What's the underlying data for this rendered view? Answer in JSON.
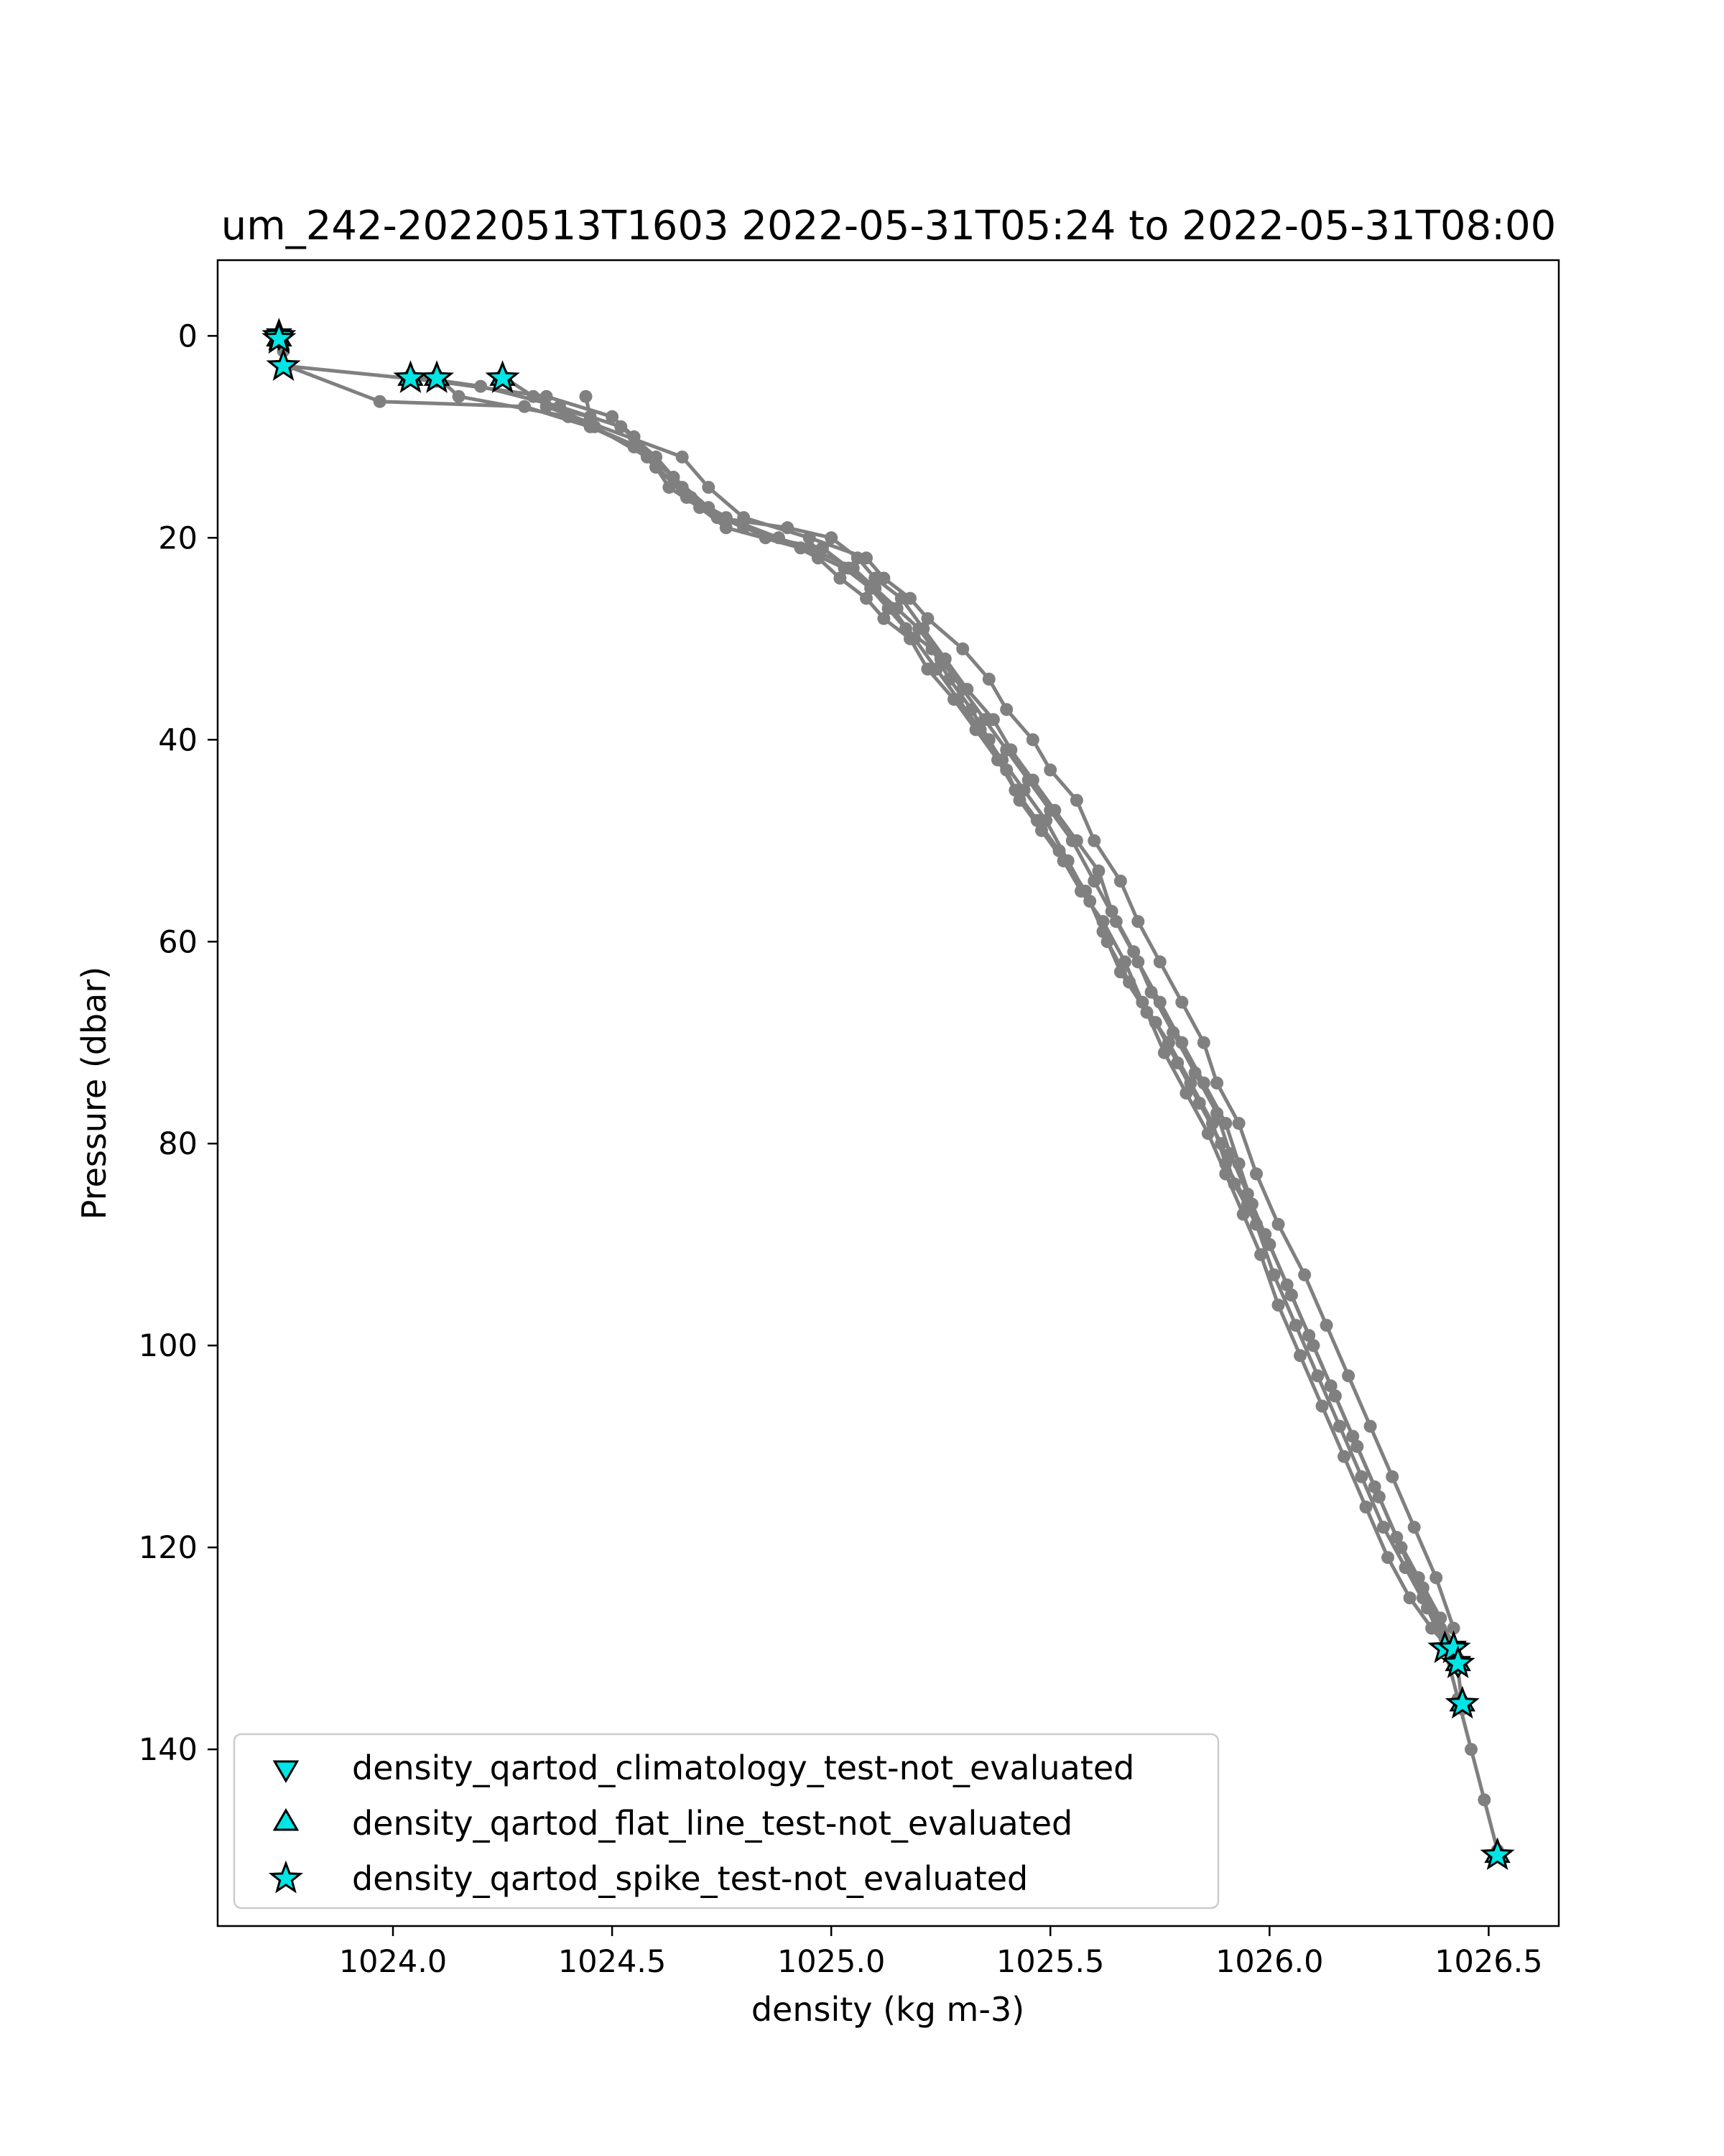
{
  "chart_data": {
    "type": "scatter",
    "title": "um_242-20220513T1603 2022-05-31T05:24 to 2022-05-31T08:00",
    "xlabel": "density (kg m-3)",
    "ylabel": "Pressure (dbar)",
    "xlim": [
      1023.6,
      1026.66
    ],
    "ylim": [
      157.5,
      -7.5
    ],
    "y_inverted": true,
    "grid": false,
    "x_ticks": [
      "1024.0",
      "1024.5",
      "1025.0",
      "1025.5",
      "1026.0",
      "1026.5"
    ],
    "y_ticks": [
      "0",
      "20",
      "40",
      "60",
      "80",
      "100",
      "120",
      "140"
    ],
    "profile_color": "#808080",
    "flag_color": "#00e5e5",
    "legend": {
      "position": "lower left",
      "entries": [
        {
          "label": "density_qartod_climatology_test-not_evaluated",
          "marker": "triangle-down"
        },
        {
          "label": "density_qartod_flat_line_test-not_evaluated",
          "marker": "triangle-up"
        },
        {
          "label": "density_qartod_spike_test-not_evaluated",
          "marker": "star"
        }
      ]
    },
    "series": [
      {
        "role": "profile",
        "x": [
          1023.74,
          1023.75,
          1023.76,
          1024.1,
          1024.35,
          1024.5,
          1024.55,
          1024.6,
          1024.63,
          1024.7,
          1024.8,
          1024.95,
          1025.05,
          1025.1,
          1025.15,
          1025.2,
          1025.25,
          1025.3,
          1025.35,
          1025.4,
          1025.45,
          1025.5,
          1025.55,
          1025.6,
          1025.65,
          1025.7,
          1025.75,
          1025.8,
          1025.85,
          1025.9,
          1025.93,
          1025.96,
          1026.0,
          1026.05,
          1026.1,
          1026.15,
          1026.2,
          1026.25,
          1026.3,
          1026.35,
          1026.4,
          1026.43,
          1026.46,
          1026.49,
          1026.52
        ],
        "y": [
          0,
          1.5,
          3,
          4.5,
          6,
          8,
          10,
          13,
          15,
          17,
          19,
          21,
          23,
          25,
          27,
          29,
          32,
          35,
          38,
          41,
          44,
          47,
          50,
          54,
          58,
          62,
          66,
          70,
          74,
          78,
          82,
          86,
          90,
          95,
          100,
          105,
          110,
          115,
          120,
          125,
          130,
          135,
          140,
          145,
          150
        ]
      },
      {
        "role": "profile",
        "x": [
          1023.74,
          1023.76,
          1023.97,
          1024.3,
          1024.45,
          1024.55,
          1024.6,
          1024.68,
          1024.76,
          1024.88,
          1024.97,
          1025.02,
          1025.08,
          1025.12,
          1025.18,
          1025.22,
          1025.28,
          1025.33,
          1025.38,
          1025.42,
          1025.47,
          1025.52,
          1025.58,
          1025.62,
          1025.66,
          1025.72,
          1025.76,
          1025.81,
          1025.86,
          1025.9,
          1025.94,
          1025.98,
          1026.02,
          1026.07,
          1026.12,
          1026.17,
          1026.22,
          1026.27,
          1026.32,
          1026.37,
          1026.41
        ],
        "y": [
          0,
          3,
          6.5,
          7,
          9,
          11,
          13,
          16,
          18,
          20,
          22,
          24,
          26,
          28,
          30,
          33,
          36,
          39,
          42,
          45,
          48,
          51,
          55,
          59,
          63,
          67,
          71,
          75,
          79,
          83,
          87,
          91,
          96,
          101,
          106,
          111,
          116,
          121,
          125,
          128,
          130
        ]
      },
      {
        "role": "profile",
        "x": [
          1024.04,
          1024.2,
          1024.38,
          1024.52,
          1024.6,
          1024.66,
          1024.74,
          1024.9,
          1025.0,
          1025.06,
          1025.1,
          1025.16,
          1025.21,
          1025.26,
          1025.31,
          1025.37,
          1025.41,
          1025.46,
          1025.51,
          1025.56,
          1025.61,
          1025.64,
          1025.69,
          1025.73,
          1025.78,
          1025.83,
          1025.88,
          1025.91,
          1025.95,
          1025.99,
          1026.04,
          1026.09,
          1026.14,
          1026.19,
          1026.24,
          1026.29,
          1026.34,
          1026.39,
          1026.42
        ],
        "y": [
          4,
          5,
          7,
          9,
          12,
          15,
          18,
          19,
          20,
          22,
          24,
          26,
          29,
          32,
          35,
          38,
          41,
          44,
          47,
          50,
          53,
          57,
          61,
          65,
          69,
          73,
          77,
          81,
          85,
          89,
          94,
          99,
          104,
          109,
          114,
          119,
          123,
          127,
          130
        ]
      },
      {
        "role": "profile",
        "x": [
          1024.1,
          1024.15,
          1024.4,
          1024.56,
          1024.64,
          1024.72,
          1024.85,
          1024.98,
          1025.04,
          1025.1,
          1025.14,
          1025.19,
          1025.24,
          1025.29,
          1025.34,
          1025.39,
          1025.44,
          1025.49,
          1025.54,
          1025.59,
          1025.63,
          1025.68,
          1025.74,
          1025.79,
          1025.84,
          1025.89,
          1025.92,
          1025.97,
          1026.01,
          1026.06,
          1026.11,
          1026.16,
          1026.21,
          1026.26,
          1026.31,
          1026.36,
          1026.4,
          1026.43
        ],
        "y": [
          4,
          6,
          8,
          11,
          14,
          17,
          20,
          21,
          23,
          25,
          27,
          30,
          33,
          36,
          39,
          42,
          45,
          48,
          52,
          56,
          60,
          64,
          68,
          72,
          76,
          80,
          84,
          88,
          93,
          98,
          103,
          108,
          113,
          118,
          122,
          126,
          129,
          131
        ]
      },
      {
        "role": "profile",
        "x": [
          1024.25,
          1024.32,
          1024.46,
          1024.58,
          1024.67,
          1024.76,
          1024.93,
          1025.03,
          1025.09,
          1025.13,
          1025.17,
          1025.23,
          1025.27,
          1025.32,
          1025.36,
          1025.4,
          1025.43,
          1025.48,
          1025.53,
          1025.57,
          1025.62,
          1025.67,
          1025.71,
          1025.77,
          1025.82,
          1025.87,
          1025.9,
          1025.95,
          1026.0,
          1026.05,
          1026.1,
          1026.15,
          1026.2,
          1026.25,
          1026.3,
          1026.35,
          1026.39,
          1026.43,
          1026.44
        ],
        "y": [
          4,
          6,
          9,
          12,
          16,
          19,
          21,
          23,
          25,
          27,
          29,
          31,
          34,
          37,
          40,
          43,
          46,
          49,
          52,
          55,
          58,
          62,
          66,
          70,
          74,
          78,
          82,
          86,
          90,
          95,
          100,
          105,
          110,
          115,
          120,
          124,
          128,
          132,
          136
        ]
      },
      {
        "role": "profile",
        "x": [
          1024.44,
          1024.45,
          1024.35,
          1024.66,
          1024.72,
          1024.8,
          1024.95,
          1025.08,
          1025.12,
          1025.18,
          1025.22,
          1025.3,
          1025.36,
          1025.4,
          1025.46,
          1025.5,
          1025.56,
          1025.6,
          1025.66,
          1025.7,
          1025.75,
          1025.8,
          1025.85,
          1025.88,
          1025.93,
          1025.97,
          1026.02,
          1026.08,
          1026.13,
          1026.18,
          1026.23,
          1026.28,
          1026.33,
          1026.38,
          1026.42
        ],
        "y": [
          6,
          8,
          7,
          12,
          15,
          18,
          20,
          22,
          24,
          26,
          28,
          31,
          34,
          37,
          40,
          43,
          46,
          50,
          54,
          58,
          62,
          66,
          70,
          74,
          78,
          83,
          88,
          93,
          98,
          103,
          108,
          113,
          118,
          123,
          128
        ]
      }
    ],
    "flags": [
      {
        "test": "density_qartod_spike_test-not_evaluated",
        "marker": "star",
        "x": [
          1023.74,
          1023.74,
          1023.75,
          1024.04,
          1024.1,
          1024.25,
          1026.4,
          1026.42,
          1026.43,
          1026.44,
          1026.52
        ],
        "y": [
          0,
          0.3,
          3,
          4.2,
          4.2,
          4.2,
          130,
          130,
          131.5,
          135.5,
          150.5
        ]
      },
      {
        "test": "density_qartod_flat_line_test-not_evaluated",
        "marker": "triangle-up",
        "x": [
          1023.74,
          1024.04,
          1024.1,
          1024.25,
          1026.43,
          1026.44,
          1026.52
        ],
        "y": [
          0.3,
          4.2,
          4.2,
          4.2,
          131.5,
          135.5,
          150.5
        ]
      },
      {
        "test": "density_qartod_climatology_test-not_evaluated",
        "marker": "triangle-down",
        "x": [
          1023.74,
          1026.42,
          1026.43
        ],
        "y": [
          0,
          130,
          131.5
        ]
      }
    ]
  }
}
